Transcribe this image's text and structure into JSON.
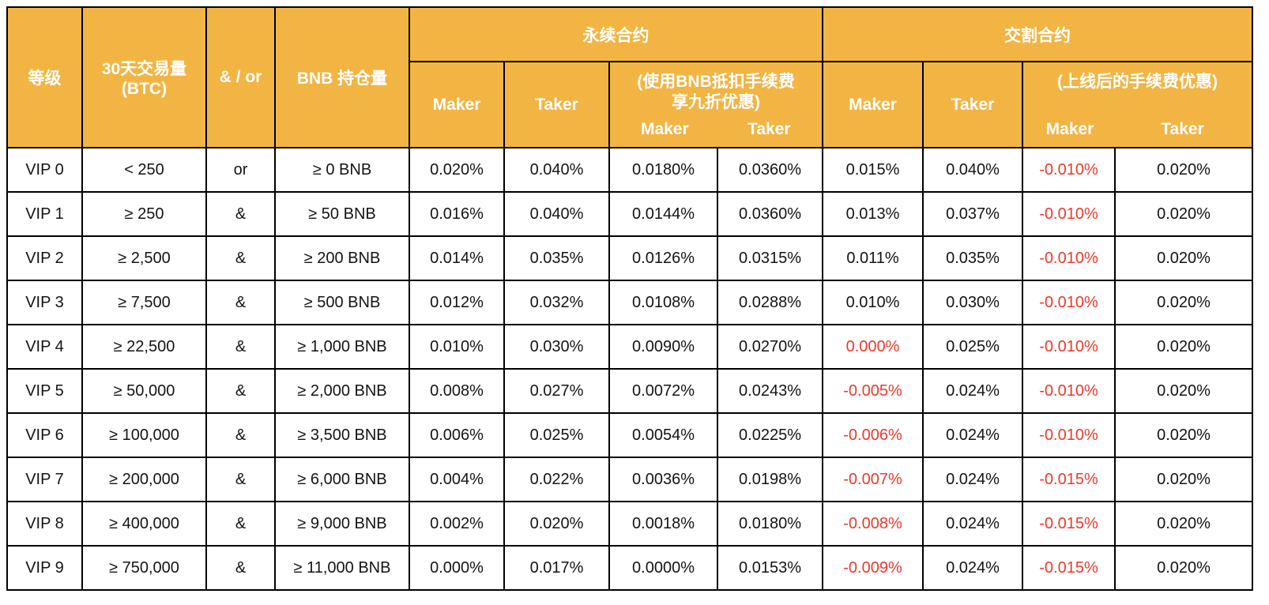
{
  "colors": {
    "header_bg": "#F2B544",
    "header_text": "#FFFFFF",
    "border": "#000000",
    "value_text": "#141414",
    "negative_value_text": "#ED392B"
  },
  "chart_data": {
    "type": "table",
    "header": {
      "col_level": "等级",
      "col_volume": "30天交易量\n(BTC)",
      "col_andor": "& / or",
      "col_bnb": "BNB 持仓量",
      "group_perpetual": "永续合约",
      "group_delivery": "交割合约",
      "maker": "Maker",
      "taker": "Taker",
      "perp_discount_title": "(使用BNB抵扣手续费\n享九折优惠)",
      "delivery_discount_title": "(上线后的手续费优惠)"
    },
    "rows": [
      {
        "cells": [
          {
            "text": "VIP 0"
          },
          {
            "text": "< 250"
          },
          {
            "text": "or"
          },
          {
            "text": "≥ 0 BNB"
          },
          {
            "text": "0.020%"
          },
          {
            "text": "0.040%"
          },
          {
            "text": "0.0180%"
          },
          {
            "text": "0.0360%"
          },
          {
            "text": "0.015%"
          },
          {
            "text": "0.040%"
          },
          {
            "text": "-0.010%",
            "red": true
          },
          {
            "text": "0.020%"
          }
        ]
      },
      {
        "cells": [
          {
            "text": "VIP 1"
          },
          {
            "text": "≥ 250"
          },
          {
            "text": "&"
          },
          {
            "text": "≥ 50 BNB"
          },
          {
            "text": "0.016%"
          },
          {
            "text": "0.040%"
          },
          {
            "text": "0.0144%"
          },
          {
            "text": "0.0360%"
          },
          {
            "text": "0.013%"
          },
          {
            "text": "0.037%"
          },
          {
            "text": "-0.010%",
            "red": true
          },
          {
            "text": "0.020%"
          }
        ]
      },
      {
        "cells": [
          {
            "text": "VIP 2"
          },
          {
            "text": "≥ 2,500"
          },
          {
            "text": "&"
          },
          {
            "text": "≥ 200 BNB"
          },
          {
            "text": "0.014%"
          },
          {
            "text": "0.035%"
          },
          {
            "text": "0.0126%"
          },
          {
            "text": "0.0315%"
          },
          {
            "text": "0.011%"
          },
          {
            "text": "0.035%"
          },
          {
            "text": "-0.010%",
            "red": true
          },
          {
            "text": "0.020%"
          }
        ]
      },
      {
        "cells": [
          {
            "text": "VIP 3"
          },
          {
            "text": "≥ 7,500"
          },
          {
            "text": "&"
          },
          {
            "text": "≥ 500 BNB"
          },
          {
            "text": "0.012%"
          },
          {
            "text": "0.032%"
          },
          {
            "text": "0.0108%"
          },
          {
            "text": "0.0288%"
          },
          {
            "text": "0.010%"
          },
          {
            "text": "0.030%"
          },
          {
            "text": "-0.010%",
            "red": true
          },
          {
            "text": "0.020%"
          }
        ]
      },
      {
        "cells": [
          {
            "text": "VIP 4"
          },
          {
            "text": "≥ 22,500"
          },
          {
            "text": "&"
          },
          {
            "text": "≥ 1,000 BNB"
          },
          {
            "text": "0.010%"
          },
          {
            "text": "0.030%"
          },
          {
            "text": "0.0090%"
          },
          {
            "text": "0.0270%"
          },
          {
            "text": "0.000%",
            "red": true
          },
          {
            "text": "0.025%"
          },
          {
            "text": "-0.010%",
            "red": true
          },
          {
            "text": "0.020%"
          }
        ]
      },
      {
        "cells": [
          {
            "text": "VIP 5"
          },
          {
            "text": "≥ 50,000"
          },
          {
            "text": "&"
          },
          {
            "text": "≥ 2,000 BNB"
          },
          {
            "text": "0.008%"
          },
          {
            "text": "0.027%"
          },
          {
            "text": "0.0072%"
          },
          {
            "text": "0.0243%"
          },
          {
            "text": "-0.005%",
            "red": true
          },
          {
            "text": "0.024%"
          },
          {
            "text": "-0.010%",
            "red": true
          },
          {
            "text": "0.020%"
          }
        ]
      },
      {
        "cells": [
          {
            "text": "VIP 6"
          },
          {
            "text": "≥ 100,000"
          },
          {
            "text": "&"
          },
          {
            "text": "≥ 3,500 BNB"
          },
          {
            "text": "0.006%"
          },
          {
            "text": "0.025%"
          },
          {
            "text": "0.0054%"
          },
          {
            "text": "0.0225%"
          },
          {
            "text": "-0.006%",
            "red": true
          },
          {
            "text": "0.024%"
          },
          {
            "text": "-0.010%",
            "red": true
          },
          {
            "text": "0.020%"
          }
        ]
      },
      {
        "cells": [
          {
            "text": "VIP 7"
          },
          {
            "text": "≥ 200,000"
          },
          {
            "text": "&"
          },
          {
            "text": "≥ 6,000 BNB"
          },
          {
            "text": "0.004%"
          },
          {
            "text": "0.022%"
          },
          {
            "text": "0.0036%"
          },
          {
            "text": "0.0198%"
          },
          {
            "text": "-0.007%",
            "red": true
          },
          {
            "text": "0.024%"
          },
          {
            "text": "-0.015%",
            "red": true
          },
          {
            "text": "0.020%"
          }
        ]
      },
      {
        "cells": [
          {
            "text": "VIP 8"
          },
          {
            "text": "≥ 400,000"
          },
          {
            "text": "&"
          },
          {
            "text": "≥ 9,000 BNB"
          },
          {
            "text": "0.002%"
          },
          {
            "text": "0.020%"
          },
          {
            "text": "0.0018%"
          },
          {
            "text": "0.0180%"
          },
          {
            "text": "-0.008%",
            "red": true
          },
          {
            "text": "0.024%"
          },
          {
            "text": "-0.015%",
            "red": true
          },
          {
            "text": "0.020%"
          }
        ]
      },
      {
        "cells": [
          {
            "text": "VIP 9"
          },
          {
            "text": "≥ 750,000"
          },
          {
            "text": "&"
          },
          {
            "text": "≥ 11,000 BNB"
          },
          {
            "text": "0.000%"
          },
          {
            "text": "0.017%"
          },
          {
            "text": "0.0000%"
          },
          {
            "text": "0.0153%"
          },
          {
            "text": "-0.009%",
            "red": true
          },
          {
            "text": "0.024%"
          },
          {
            "text": "-0.015%",
            "red": true
          },
          {
            "text": "0.020%"
          }
        ]
      }
    ]
  }
}
